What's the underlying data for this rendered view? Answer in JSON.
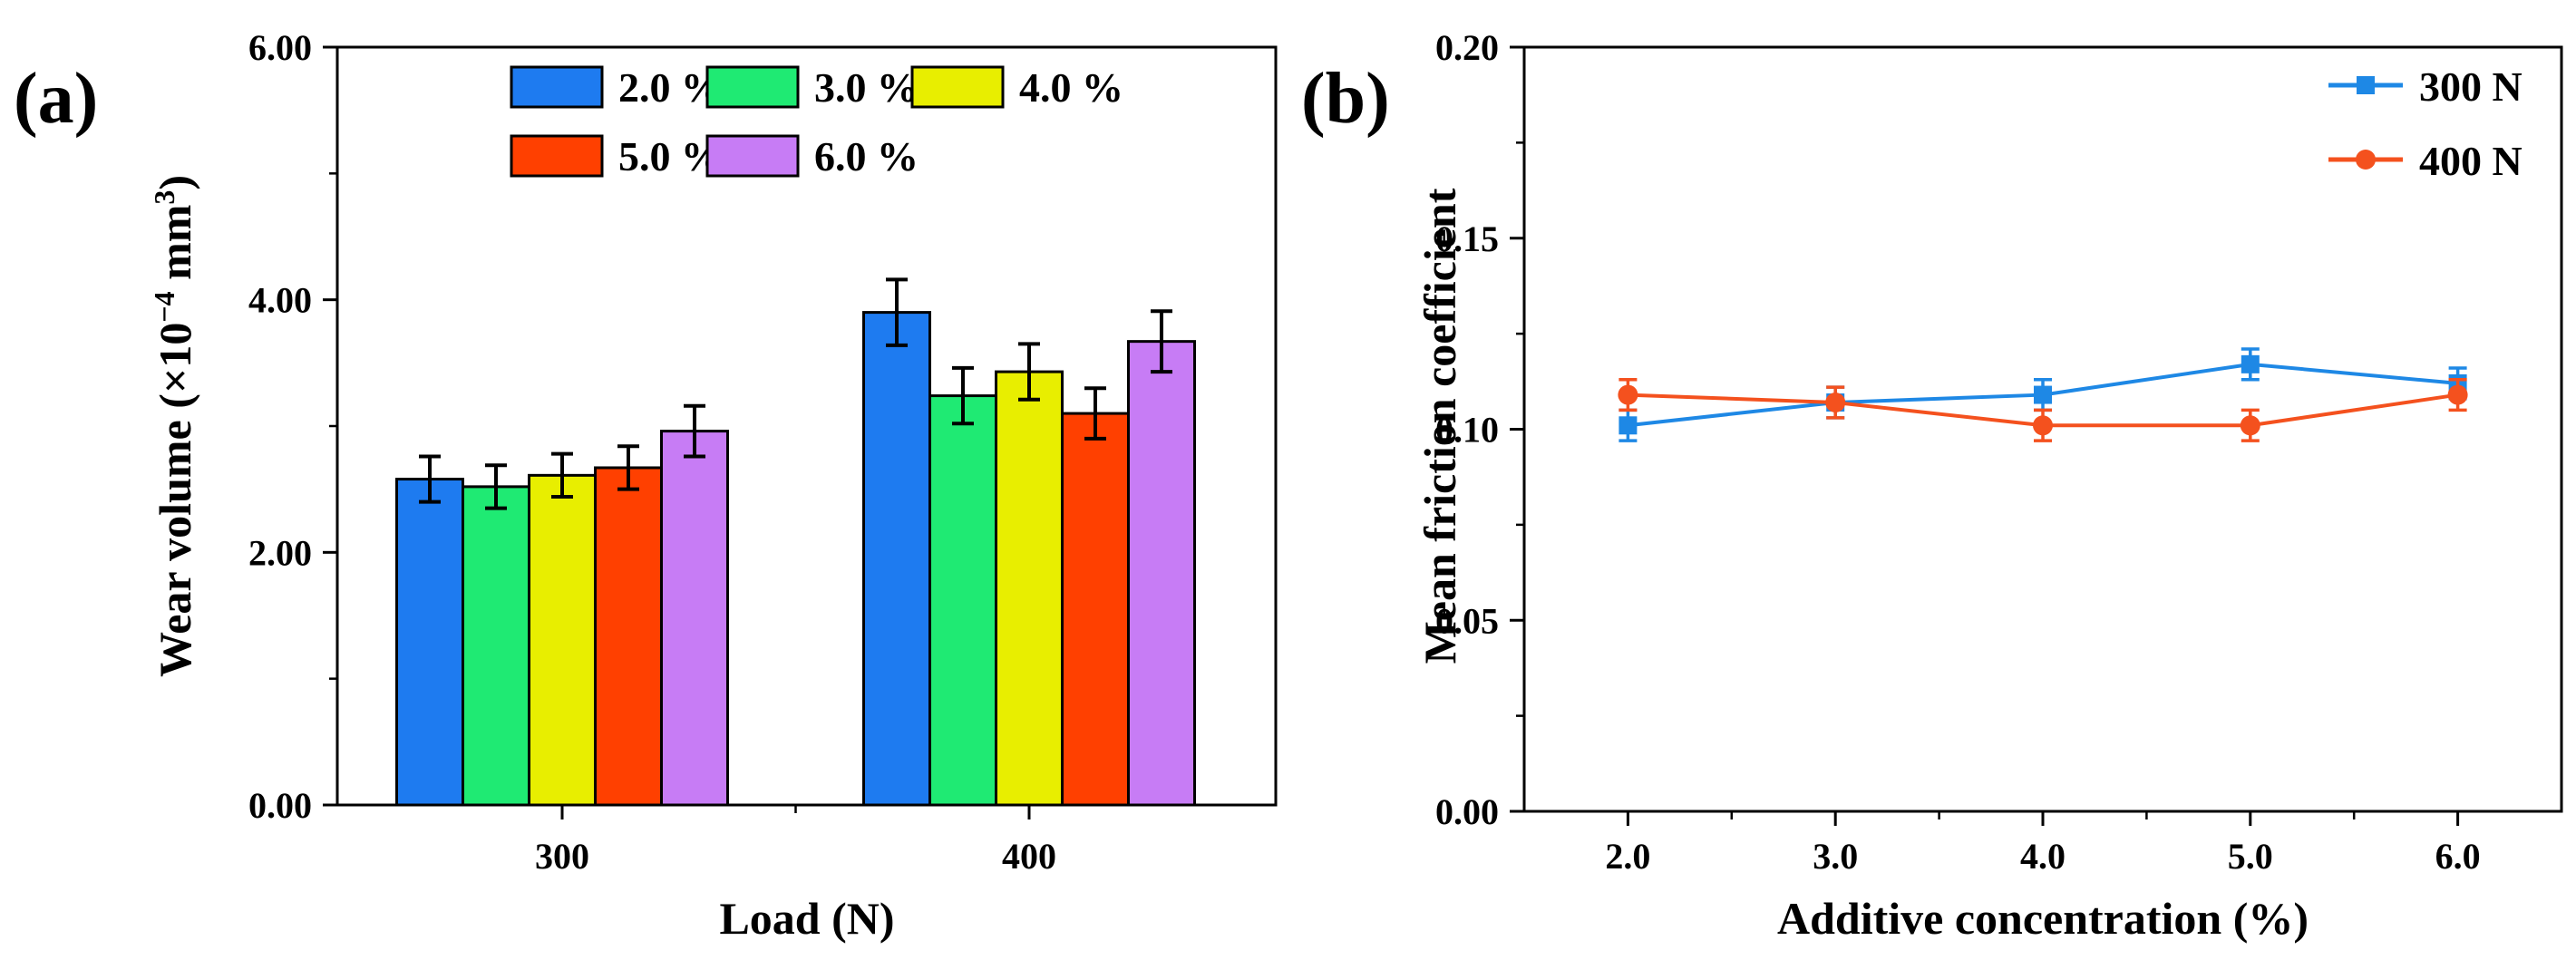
{
  "chart_data": [
    {
      "panel_label": "(a)",
      "type": "bar",
      "title": "",
      "xlabel": "Load (N)",
      "ylabel_main": "Wear volume (×10",
      "ylabel_exp1": "−4",
      "ylabel_mid": " mm",
      "ylabel_exp2": "3",
      "ylabel_end": ")",
      "ylim": [
        0,
        6
      ],
      "yticks": [
        0,
        2,
        4,
        6
      ],
      "ytick_labels": [
        "0.00",
        "2.00",
        "4.00",
        "6.00"
      ],
      "categories": [
        "300",
        "400"
      ],
      "legend_position": "top-right",
      "series": [
        {
          "name": "2.0 %",
          "color": "#1E7BF0",
          "values": [
            2.58,
            3.9
          ],
          "errors": [
            0.18,
            0.26
          ]
        },
        {
          "name": "3.0 %",
          "color": "#1FEA73",
          "values": [
            2.52,
            3.24
          ],
          "errors": [
            0.17,
            0.22
          ]
        },
        {
          "name": "4.0 %",
          "color": "#E8EE00",
          "values": [
            2.61,
            3.43
          ],
          "errors": [
            0.17,
            0.22
          ]
        },
        {
          "name": "5.0 %",
          "color": "#FF4000",
          "values": [
            2.67,
            3.1
          ],
          "errors": [
            0.17,
            0.2
          ]
        },
        {
          "name": "6.0 %",
          "color": "#C77CF5",
          "values": [
            2.96,
            3.67
          ],
          "errors": [
            0.2,
            0.24
          ]
        }
      ]
    },
    {
      "panel_label": "(b)",
      "type": "line",
      "title": "",
      "xlabel": "Additive concentration (%)",
      "ylabel": "Mean friction coefficient",
      "x": [
        2.0,
        3.0,
        4.0,
        5.0,
        6.0
      ],
      "xtick_labels": [
        "2.0",
        "3.0",
        "4.0",
        "5.0",
        "6.0"
      ],
      "xlim": [
        1.5,
        6.5
      ],
      "ylim": [
        0,
        0.2
      ],
      "yticks": [
        0,
        0.05,
        0.1,
        0.15,
        0.2
      ],
      "ytick_labels": [
        "0.00",
        "0.05",
        "0.10",
        "0.15",
        "0.20"
      ],
      "legend_position": "top-right",
      "series": [
        {
          "name": "300 N",
          "color": "#1E88E5",
          "marker": "square",
          "values": [
            0.101,
            0.107,
            0.109,
            0.117,
            0.112
          ],
          "errors": [
            0.004,
            0.004,
            0.004,
            0.004,
            0.004
          ]
        },
        {
          "name": "400 N",
          "color": "#F4511E",
          "marker": "circle",
          "values": [
            0.109,
            0.107,
            0.101,
            0.101,
            0.109
          ],
          "errors": [
            0.004,
            0.004,
            0.004,
            0.004,
            0.004
          ]
        }
      ]
    }
  ]
}
